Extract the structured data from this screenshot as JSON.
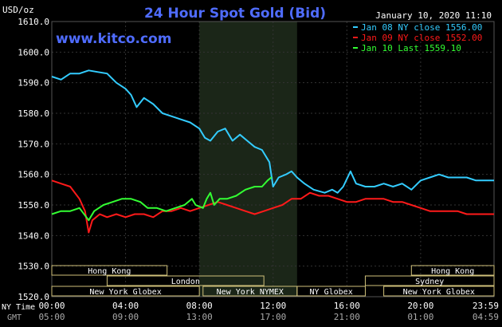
{
  "header": {
    "title": "24 Hour Spot Gold (Bid)",
    "date": "January 10, 2020 11:10",
    "site": "www.kitco.com",
    "unit": "USD/oz"
  },
  "legend": {
    "items": [
      {
        "label": "Jan 08 NY close 1556.00",
        "color": "#33ccff"
      },
      {
        "label": "Jan 09 NY close 1552.00",
        "color": "#ff1a1a"
      },
      {
        "label": "Jan 10 Last 1559.10",
        "color": "#33ff33"
      }
    ]
  },
  "axes": {
    "row_label_nytime": "NY Time",
    "row_label_gmt": "GMT",
    "ny_ticks": [
      "00:00",
      "04:00",
      "08:00",
      "12:00",
      "16:00",
      "20:00",
      "23:59"
    ],
    "gmt_ticks": [
      "05:00",
      "09:00",
      "13:00",
      "17:00",
      "21:00",
      "01:00",
      "04:59"
    ]
  },
  "sessions": [
    {
      "label": "Hong Kong",
      "start": 0.0,
      "end": 6.25,
      "row": 0
    },
    {
      "label": "Hong Kong",
      "start": 19.5,
      "end": 23.98,
      "row": 0
    },
    {
      "label": "London",
      "start": 3.0,
      "end": 11.5,
      "row": 1
    },
    {
      "label": "Sydney",
      "start": 17.0,
      "end": 23.98,
      "row": 1
    },
    {
      "label": "New York Globex",
      "start": 0.0,
      "end": 8.0,
      "row": 2
    },
    {
      "label": "New York NYMEX",
      "start": 8.2,
      "end": 13.3,
      "row": 2
    },
    {
      "label": "NY Globex",
      "start": 13.3,
      "end": 17.0,
      "row": 2
    },
    {
      "label": "New York Globex",
      "start": 18.0,
      "end": 23.98,
      "row": 2
    }
  ],
  "colors": {
    "background": "#000000",
    "grid": "#333333",
    "axis_text": "#ffffff",
    "title": "#4f6cff",
    "site": "#4f6cff",
    "session_shade": "#1b2618",
    "session_box": "#cfc07a",
    "session_text": "#ffffff"
  },
  "chart_data": {
    "type": "line",
    "title": "24 Hour Spot Gold (Bid)",
    "ylabel": "USD/oz",
    "xlabel": "NY Time",
    "ylim": [
      1520,
      1610
    ],
    "xlim": [
      0,
      23.98
    ],
    "yticks": [
      "1520.0",
      "1530.0",
      "1540.0",
      "1550.0",
      "1560.0",
      "1570.0",
      "1580.0",
      "1590.0",
      "1600.0",
      "1610.0"
    ],
    "shaded_session": [
      8.0,
      13.3
    ],
    "series": [
      {
        "name": "Jan 08 NY close 1556.00",
        "color": "#33ccff",
        "points": [
          [
            0,
            1592
          ],
          [
            0.5,
            1591
          ],
          [
            1,
            1593
          ],
          [
            1.5,
            1593
          ],
          [
            2,
            1594
          ],
          [
            2.5,
            1593.5
          ],
          [
            3,
            1593
          ],
          [
            3.5,
            1590
          ],
          [
            4,
            1588
          ],
          [
            4.3,
            1586
          ],
          [
            4.6,
            1582
          ],
          [
            5,
            1585
          ],
          [
            5.5,
            1583
          ],
          [
            6,
            1580
          ],
          [
            6.5,
            1579
          ],
          [
            7,
            1578
          ],
          [
            7.5,
            1577
          ],
          [
            8,
            1575
          ],
          [
            8.3,
            1572
          ],
          [
            8.6,
            1571
          ],
          [
            9,
            1574
          ],
          [
            9.4,
            1575
          ],
          [
            9.8,
            1571
          ],
          [
            10.2,
            1573
          ],
          [
            10.6,
            1571
          ],
          [
            11,
            1569
          ],
          [
            11.4,
            1568
          ],
          [
            11.8,
            1564
          ],
          [
            12,
            1556
          ],
          [
            12.3,
            1559
          ],
          [
            12.7,
            1560
          ],
          [
            13,
            1561
          ],
          [
            13.3,
            1559
          ],
          [
            13.7,
            1557
          ],
          [
            14.2,
            1555
          ],
          [
            14.8,
            1554
          ],
          [
            15.2,
            1555
          ],
          [
            15.5,
            1554
          ],
          [
            15.8,
            1556
          ],
          [
            16.2,
            1561
          ],
          [
            16.5,
            1557
          ],
          [
            17,
            1556
          ],
          [
            17.5,
            1556
          ],
          [
            18,
            1557
          ],
          [
            18.5,
            1556
          ],
          [
            19,
            1557
          ],
          [
            19.5,
            1555
          ],
          [
            20,
            1558
          ],
          [
            20.5,
            1559
          ],
          [
            21,
            1560
          ],
          [
            21.5,
            1559
          ],
          [
            22,
            1559
          ],
          [
            22.5,
            1559
          ],
          [
            23,
            1558
          ],
          [
            23.5,
            1558
          ],
          [
            23.98,
            1558
          ]
        ]
      },
      {
        "name": "Jan 09 NY close 1552.00",
        "color": "#ff1a1a",
        "points": [
          [
            0,
            1558
          ],
          [
            0.5,
            1557
          ],
          [
            1,
            1556
          ],
          [
            1.5,
            1552
          ],
          [
            1.8,
            1548
          ],
          [
            2,
            1541
          ],
          [
            2.2,
            1545
          ],
          [
            2.6,
            1547
          ],
          [
            3,
            1546
          ],
          [
            3.5,
            1547
          ],
          [
            4,
            1546
          ],
          [
            4.5,
            1547
          ],
          [
            5,
            1547
          ],
          [
            5.5,
            1546
          ],
          [
            6,
            1548
          ],
          [
            6.5,
            1548
          ],
          [
            7,
            1549
          ],
          [
            7.5,
            1548
          ],
          [
            8,
            1549
          ],
          [
            8.5,
            1550
          ],
          [
            9,
            1551
          ],
          [
            9.5,
            1550
          ],
          [
            10,
            1549
          ],
          [
            10.5,
            1548
          ],
          [
            11,
            1547
          ],
          [
            11.5,
            1548
          ],
          [
            12,
            1549
          ],
          [
            12.5,
            1550
          ],
          [
            13,
            1552
          ],
          [
            13.5,
            1552
          ],
          [
            14,
            1554
          ],
          [
            14.5,
            1553
          ],
          [
            15,
            1553
          ],
          [
            15.5,
            1552
          ],
          [
            16,
            1551
          ],
          [
            16.5,
            1551
          ],
          [
            17,
            1552
          ],
          [
            17.5,
            1552
          ],
          [
            18,
            1552
          ],
          [
            18.5,
            1551
          ],
          [
            19,
            1551
          ],
          [
            19.5,
            1550
          ],
          [
            20,
            1549
          ],
          [
            20.5,
            1548
          ],
          [
            21,
            1548
          ],
          [
            21.5,
            1548
          ],
          [
            22,
            1548
          ],
          [
            22.5,
            1547
          ],
          [
            23,
            1547
          ],
          [
            23.5,
            1547
          ],
          [
            23.98,
            1547
          ]
        ]
      },
      {
        "name": "Jan 10 Last 1559.10",
        "color": "#33ff33",
        "points": [
          [
            0,
            1547
          ],
          [
            0.5,
            1548
          ],
          [
            1,
            1548
          ],
          [
            1.5,
            1549
          ],
          [
            2,
            1545
          ],
          [
            2.3,
            1548
          ],
          [
            2.8,
            1550
          ],
          [
            3.3,
            1551
          ],
          [
            3.8,
            1552
          ],
          [
            4.3,
            1552
          ],
          [
            4.8,
            1551
          ],
          [
            5.2,
            1549
          ],
          [
            5.7,
            1549
          ],
          [
            6.2,
            1548
          ],
          [
            6.7,
            1549
          ],
          [
            7.2,
            1550
          ],
          [
            7.6,
            1552
          ],
          [
            7.8,
            1550
          ],
          [
            8.2,
            1549
          ],
          [
            8.4,
            1552
          ],
          [
            8.6,
            1554
          ],
          [
            8.8,
            1550
          ],
          [
            9.1,
            1552
          ],
          [
            9.5,
            1552
          ],
          [
            10,
            1553
          ],
          [
            10.5,
            1555
          ],
          [
            11,
            1556
          ],
          [
            11.4,
            1556
          ],
          [
            11.7,
            1558
          ],
          [
            11.92,
            1559.1
          ]
        ]
      }
    ]
  }
}
